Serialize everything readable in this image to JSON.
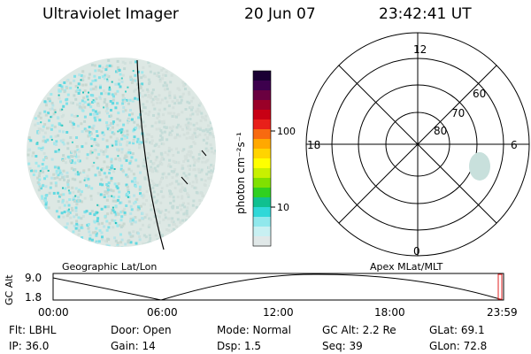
{
  "header": {
    "title": "Ultraviolet Imager",
    "date": "20 Jun 07",
    "time": "23:42:41 UT"
  },
  "colorbar": {
    "unit_label": "photon cm⁻²s⁻¹",
    "tick_labels": [
      "100",
      "10"
    ],
    "colors": [
      "#1a0033",
      "#3d004d",
      "#6a0040",
      "#9a0028",
      "#c80014",
      "#e8201a",
      "#f86a10",
      "#ffa800",
      "#ffd400",
      "#ffff00",
      "#c8f000",
      "#80e000",
      "#30d020",
      "#10c090",
      "#30d8d8",
      "#90e8ec",
      "#c8f0f2",
      "#e0e8e8"
    ]
  },
  "polar": {
    "labels": {
      "top": "12",
      "left": "18",
      "right": "6",
      "bottom": "0",
      "r60": "60",
      "r70": "70",
      "r80": "80"
    }
  },
  "orbit": {
    "left_label": "Geographic Lat/Lon",
    "right_label": "Apex MLat/MLT",
    "axis_label": "GC Alt",
    "y_ticks": [
      "9.0",
      "1.8"
    ],
    "x_ticks": [
      "00:00",
      "06:00",
      "12:00",
      "18:00",
      "23:59"
    ]
  },
  "info": {
    "flt": "Flt: LBHL",
    "ip": "IP: 36.0",
    "door": "Door: Open",
    "gain": "Gain: 14",
    "mode": "Mode: Normal",
    "dsp": "Dsp:    1.5",
    "gcalt": "GC Alt: 2.2 Re",
    "seq": "Seq: 39",
    "glat": "GLat:   69.1",
    "glon": "GLon:   72.8"
  },
  "colors": {
    "image_base": "#c8dcd8",
    "image_cyan": "#60e0e8",
    "image_teal": "#20c0b8",
    "marker_red": "#e02020"
  }
}
